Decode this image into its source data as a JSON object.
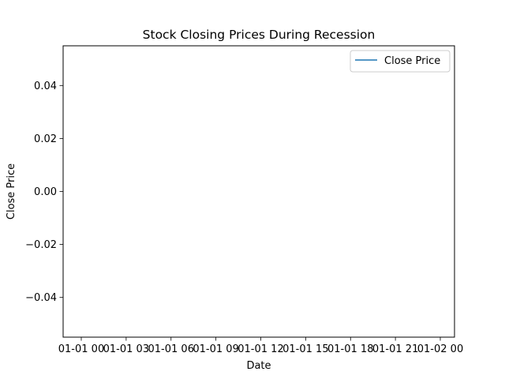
{
  "chart_data": {
    "type": "line",
    "title": "Stock Closing Prices During Recession",
    "xlabel": "Date",
    "ylabel": "Close Price",
    "x_tick_labels": [
      "01-01 00",
      "01-01 03",
      "01-01 06",
      "01-01 09",
      "01-01 12",
      "01-01 15",
      "01-01 18",
      "01-01 21",
      "01-02 00"
    ],
    "y_tick_labels": [
      "−0.04",
      "−0.02",
      "0.00",
      "0.02",
      "0.04"
    ],
    "y_tick_values": [
      -0.04,
      -0.02,
      0.0,
      0.02,
      0.04
    ],
    "ylim": [
      -0.055,
      0.055
    ],
    "grid": false,
    "legend_position": "upper right",
    "series": [
      {
        "name": "Close Price",
        "color": "#1f77b4",
        "x": [],
        "y": []
      }
    ]
  }
}
